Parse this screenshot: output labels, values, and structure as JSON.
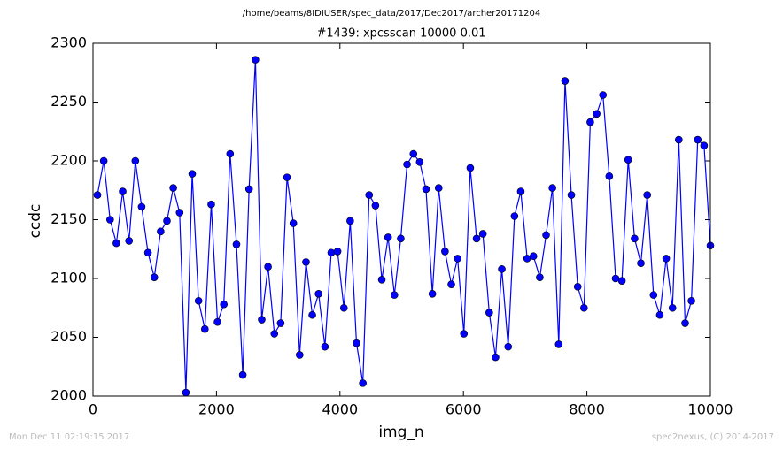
{
  "chart_data": {
    "type": "line",
    "suptitle": "/home/beams/8IDIUSER/spec_data/2017/Dec2017/archer20171204",
    "title": "#1439: xpcsscan 10000 0.01",
    "xlabel": "img_n",
    "ylabel": "ccdc",
    "footer_left": "Mon Dec 11 02:19:15 2017",
    "footer_right": "spec2nexus, (C) 2014-2017",
    "xlim": [
      0,
      10000
    ],
    "xticks": [
      0,
      2000,
      4000,
      6000,
      8000,
      10000
    ],
    "ylim": [
      2000,
      2300
    ],
    "yticks": [
      2000,
      2050,
      2100,
      2150,
      2200,
      2250,
      2300
    ],
    "x": [
      72,
      174,
      277,
      379,
      481,
      584,
      686,
      788,
      891,
      993,
      1096,
      1198,
      1300,
      1403,
      1505,
      1607,
      1710,
      1812,
      1915,
      2017,
      2119,
      2221,
      2324,
      2426,
      2528,
      2631,
      2733,
      2835,
      2938,
      3040,
      3143,
      3245,
      3347,
      3450,
      3552,
      3654,
      3757,
      3859,
      3961,
      4064,
      4166,
      4268,
      4371,
      4473,
      4575,
      4678,
      4780,
      4882,
      4985,
      5087,
      5190,
      5292,
      5394,
      5497,
      5599,
      5701,
      5804,
      5906,
      6008,
      6111,
      6213,
      6315,
      6418,
      6520,
      6622,
      6725,
      6827,
      6929,
      7032,
      7134,
      7237,
      7339,
      7441,
      7544,
      7646,
      7748,
      7851,
      7953,
      8055,
      8158,
      8260,
      8362,
      8465,
      8567,
      8669,
      8772,
      8874,
      8977,
      9079,
      9181,
      9284,
      9386,
      9488,
      9591,
      9693,
      9795,
      9898,
      10000
    ],
    "series": [
      {
        "name": "ccdc",
        "color": "#0000ff",
        "marker_color": "#0000ff",
        "values": [
          2171,
          2200,
          2150,
          2130,
          2174,
          2132,
          2200,
          2161,
          2122,
          2101,
          2140,
          2149,
          2177,
          2156,
          2003,
          2189,
          2081,
          2057,
          2163,
          2063,
          2078,
          2206,
          2129,
          2018,
          2176,
          2286,
          2065,
          2110,
          2053,
          2062,
          2186,
          2147,
          2035,
          2114,
          2069,
          2087,
          2042,
          2122,
          2123,
          2075,
          2149,
          2045,
          2011,
          2171,
          2162,
          2099,
          2135,
          2086,
          2134,
          2197,
          2206,
          2199,
          2176,
          2087,
          2177,
          2123,
          2095,
          2117,
          2053,
          2194,
          2134,
          2138,
          2071,
          2033,
          2108,
          2042,
          2153,
          2174,
          2117,
          2119,
          2101,
          2137,
          2177,
          2044,
          2268,
          2171,
          2093,
          2075,
          2233,
          2240,
          2256,
          2187,
          2100,
          2098,
          2201,
          2134,
          2113,
          2171,
          2086,
          2069,
          2117,
          2075,
          2218,
          2062,
          2081,
          2218,
          2213,
          2128
        ]
      }
    ]
  }
}
